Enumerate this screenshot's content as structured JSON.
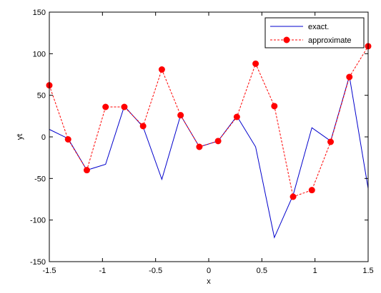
{
  "chart_data": {
    "type": "line",
    "xlabel": "x",
    "ylabel": "yt",
    "xlim": [
      -1.5,
      1.5
    ],
    "ylim": [
      -150,
      150
    ],
    "xticks": [
      -1.5,
      -1,
      -0.5,
      0,
      0.5,
      1,
      1.5
    ],
    "xtick_labels": [
      "-1.5",
      "-1",
      "-0.5",
      "0",
      "0.5",
      "1",
      "1.5"
    ],
    "yticks": [
      -150,
      -100,
      -50,
      0,
      50,
      100,
      150
    ],
    "ytick_labels": [
      "-150",
      "-100",
      "-50",
      "0",
      "50",
      "100",
      "150"
    ],
    "grid": false,
    "legend_position": "top-right",
    "series": [
      {
        "name": "exact.",
        "color": "#0000cc",
        "line_style": "solid",
        "marker": "none",
        "x": [
          -1.5,
          -1.3235,
          -1.1471,
          -0.9706,
          -0.7941,
          -0.6176,
          -0.4412,
          -0.2647,
          -0.0882,
          0.0882,
          0.2647,
          0.4412,
          0.6176,
          0.7941,
          0.9706,
          1.1471,
          1.3235,
          1.5
        ],
        "y": [
          9,
          -2,
          -40,
          -33,
          37,
          12,
          -51,
          26,
          -12,
          -5,
          25,
          -12,
          -121,
          -70,
          11,
          -5,
          73,
          -62
        ]
      },
      {
        "name": "approximate",
        "color": "#ff0000",
        "line_style": "dashed",
        "marker": "circle",
        "x": [
          -1.5,
          -1.3235,
          -1.1471,
          -0.9706,
          -0.7941,
          -0.6176,
          -0.4412,
          -0.2647,
          -0.0882,
          0.0882,
          0.2647,
          0.4412,
          0.6176,
          0.7941,
          0.9706,
          1.1471,
          1.3235,
          1.5
        ],
        "y": [
          62,
          -3,
          -40,
          36,
          36,
          13,
          81,
          26,
          -12,
          -5,
          24,
          88,
          37,
          -72,
          -64,
          -6,
          72,
          109
        ]
      }
    ]
  }
}
